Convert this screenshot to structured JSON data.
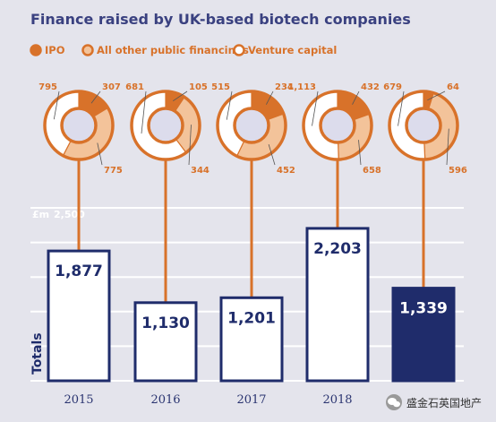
{
  "chart_data": {
    "type": "bar",
    "title": "Finance raised by UK-based biotech companies",
    "ylabel": "Totals",
    "yunit": "£m",
    "ytick": "2,500",
    "ylim": [
      0,
      2500
    ],
    "legend": [
      {
        "name": "IPO",
        "color": "#d8722a"
      },
      {
        "name": "All other public financings",
        "color": "#f3c39a"
      },
      {
        "name": "Venture capital",
        "color": "#ffffff"
      }
    ],
    "categories": [
      "2015",
      "2016",
      "2017",
      "2018",
      "2019"
    ],
    "year_labels": [
      "2015",
      "2016",
      "2017",
      "2018"
    ],
    "totals": [
      1877,
      1130,
      1201,
      2203,
      1339
    ],
    "total_labels": [
      "1,877",
      "1,130",
      "1,201",
      "2,203",
      "1,339"
    ],
    "highlight_index": 4,
    "series": [
      {
        "name": "IPO",
        "values": [
          307,
          105,
          234,
          432,
          64
        ]
      },
      {
        "name": "All other public financings",
        "values": [
          775,
          344,
          452,
          658,
          596
        ]
      },
      {
        "name": "Venture capital",
        "values": [
          795,
          681,
          515,
          1113,
          679
        ]
      }
    ],
    "series_labels": {
      "ipo": [
        "307",
        "105",
        "234",
        "432",
        "64"
      ],
      "other": [
        "775",
        "344",
        "452",
        "658",
        "596"
      ],
      "vc": [
        "795",
        "681",
        "515",
        "1,113",
        "679"
      ]
    }
  },
  "colors": {
    "accent": "#d8722a",
    "light": "#f3c39a",
    "navy": "#1f2c6b",
    "background": "#e4e4ec"
  },
  "watermark": {
    "text": "盛金石英国地产",
    "icon": "wechat-icon"
  }
}
